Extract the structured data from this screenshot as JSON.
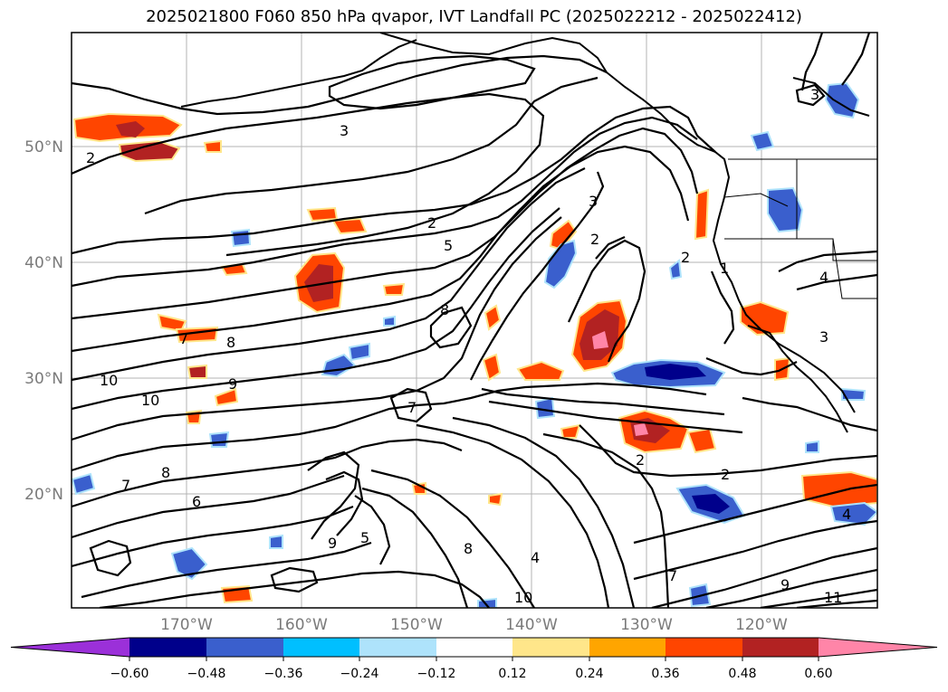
{
  "title": "2025021800 F060 850 hPa qvapor, IVT Landfall PC (2025022212 - 2025022412)",
  "latitude_labels": [
    "50°N",
    "40°N",
    "30°N",
    "20°N"
  ],
  "longitude_labels": [
    "170°W",
    "160°W",
    "150°W",
    "140°W",
    "130°W",
    "120°W"
  ],
  "contour_labels": [
    "3",
    "2",
    "2",
    "5",
    "3",
    "2",
    "2",
    "1",
    "4",
    "3",
    "3",
    "8",
    "8",
    "7",
    "10",
    "10",
    "9",
    "7",
    "6",
    "5",
    "2",
    "2",
    "7",
    "8",
    "9",
    "8",
    "10",
    "9",
    "11",
    "4",
    "7",
    "4"
  ],
  "colorbar": {
    "tick_labels": [
      "−0.60",
      "−0.48",
      "−0.36",
      "−0.24",
      "−0.12",
      "0.12",
      "0.24",
      "0.36",
      "0.48",
      "0.60"
    ],
    "colors": [
      "#9b30d9",
      "#00008b",
      "#3a5fcd",
      "#00bfff",
      "#aee3fb",
      "#ffffff",
      "#ffe68a",
      "#ffa500",
      "#ff4500",
      "#b22222",
      "#ff85a8"
    ]
  }
}
